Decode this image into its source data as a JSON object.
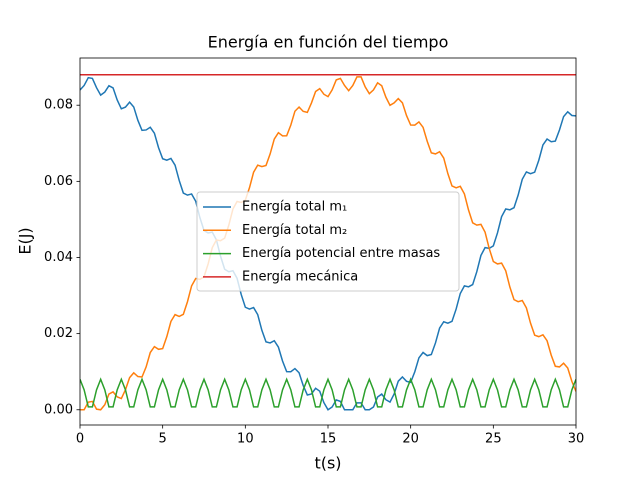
{
  "chart_data": {
    "type": "line",
    "title": "Energía en función del tiempo",
    "xlabel": "t(s)",
    "ylabel": "E(J)",
    "x": [
      0,
      0.25,
      0.5,
      0.75,
      1,
      1.25,
      1.5,
      1.75,
      2,
      2.25,
      2.5,
      2.75,
      3,
      3.25,
      3.5,
      3.75,
      4,
      4.25,
      4.5,
      4.75,
      5,
      5.25,
      5.5,
      5.75,
      6,
      6.25,
      6.5,
      6.75,
      7,
      7.25,
      7.5,
      7.75,
      8,
      8.25,
      8.5,
      8.75,
      9,
      9.25,
      9.5,
      9.75,
      10,
      10.25,
      10.5,
      10.75,
      11,
      11.25,
      11.5,
      11.75,
      12,
      12.25,
      12.5,
      12.75,
      13,
      13.25,
      13.5,
      13.75,
      14,
      14.25,
      14.5,
      14.75,
      15,
      15.25,
      15.5,
      15.75,
      16,
      16.25,
      16.5,
      16.75,
      17,
      17.25,
      17.5,
      17.75,
      18,
      18.25,
      18.5,
      18.75,
      19,
      19.25,
      19.5,
      19.75,
      20,
      20.25,
      20.5,
      20.75,
      21,
      21.25,
      21.5,
      21.75,
      22,
      22.25,
      22.5,
      22.75,
      23,
      23.25,
      23.5,
      23.75,
      24,
      24.25,
      24.5,
      24.75,
      25,
      25.25,
      25.5,
      25.75,
      26,
      26.25,
      26.5,
      26.75,
      27,
      27.25,
      27.5,
      27.75,
      28,
      28.25,
      28.5,
      28.75,
      29,
      29.25,
      29.5,
      29.75,
      30
    ],
    "series": [
      {
        "name": "Energía total m₁",
        "color": "#1f77b4",
        "values": [
          0.084,
          0.08519,
          0.08723,
          0.08704,
          0.0846,
          0.08265,
          0.08345,
          0.08512,
          0.08454,
          0.08137,
          0.07905,
          0.0795,
          0.0808,
          0.07954,
          0.07603,
          0.07339,
          0.0735,
          0.0742,
          0.07265,
          0.06887,
          0.06594,
          0.06555,
          0.06602,
          0.06425,
          0.06024,
          0.05693,
          0.05638,
          0.05669,
          0.05476,
          0.0505,
          0.0471,
          0.04645,
          0.04667,
          0.04463,
          0.04035,
          0.03692,
          0.03626,
          0.03651,
          0.03453,
          0.0303,
          0.02693,
          0.02645,
          0.02684,
          0.02498,
          0.02088,
          0.01784,
          0.01755,
          0.01813,
          0.01646,
          0.01281,
          0.01002,
          0.00999,
          0.01082,
          0.00972,
          0.00637,
          0.00389,
          0.00416,
          0.00564,
          0.00488,
          0.00188,
          0,
          0.00073,
          0.00259,
          0.0022,
          0,
          0,
          0,
          0.00181,
          0.00181,
          0,
          0,
          0.00073,
          0.00336,
          0.00412,
          0.00264,
          0.00202,
          0.00416,
          0.00751,
          0.00861,
          0.00748,
          0.0072,
          0.00999,
          0.01364,
          0.01505,
          0.01422,
          0.01451,
          0.01755,
          0.02146,
          0.02312,
          0.02274,
          0.02322,
          0.02645,
          0.03055,
          0.03254,
          0.03229,
          0.03289,
          0.03626,
          0.04054,
          0.04259,
          0.04239,
          0.04305,
          0.04645,
          0.05072,
          0.05274,
          0.05252,
          0.05307,
          0.05638,
          0.06055,
          0.06248,
          0.06201,
          0.0624,
          0.06555,
          0.06956,
          0.07111,
          0.07041,
          0.07058,
          0.0735,
          0.07701,
          0.07827,
          0.0773,
          0.07718
        ]
      },
      {
        "name": "Energía total m₂",
        "color": "#ff7f0e",
        "values": [
          0,
          0,
          0.00201,
          0.0022,
          0.00016,
          0,
          0.00131,
          0.00412,
          0.0047,
          0.00339,
          0.00295,
          0.00526,
          0.00844,
          0.0097,
          0.00873,
          0.00861,
          0.01126,
          0.01504,
          0.01659,
          0.01589,
          0.01606,
          0.01921,
          0.02322,
          0.02499,
          0.02452,
          0.02507,
          0.02838,
          0.03255,
          0.03448,
          0.03426,
          0.0349,
          0.03831,
          0.04257,
          0.04461,
          0.04441,
          0.04508,
          0.0485,
          0.05273,
          0.05471,
          0.05446,
          0.05507,
          0.05831,
          0.0624,
          0.06426,
          0.06388,
          0.06416,
          0.06721,
          0.07111,
          0.07278,
          0.07195,
          0.07198,
          0.07477,
          0.07842,
          0.07952,
          0.07839,
          0.07811,
          0.0806,
          0.0836,
          0.08436,
          0.08288,
          0.08226,
          0.08403,
          0.08665,
          0.08704,
          0.08519,
          0.08381,
          0.08519,
          0.08743,
          0.08743,
          0.0848,
          0.08303,
          0.08403,
          0.08588,
          0.08512,
          0.08212,
          0.07998,
          0.0806,
          0.08173,
          0.08063,
          0.07728,
          0.0748,
          0.07477,
          0.0756,
          0.07419,
          0.07054,
          0.06749,
          0.06721,
          0.06778,
          0.06612,
          0.06202,
          0.05878,
          0.05831,
          0.05869,
          0.0567,
          0.05247,
          0.04911,
          0.0485,
          0.0487,
          0.04665,
          0.04237,
          0.03895,
          0.03831,
          0.03852,
          0.0365,
          0.03224,
          0.02893,
          0.02838,
          0.02869,
          0.02676,
          0.02275,
          0.0196,
          0.01921,
          0.01968,
          0.01813,
          0.01435,
          0.01142,
          0.01126,
          0.01223,
          0.01097,
          0.00746,
          0.00482
        ]
      },
      {
        "name": "Energía potencial entre masas",
        "color": "#2ca02c",
        "values": [
          0.008,
          0.00524,
          0.00076,
          0.00076,
          0.00524,
          0.008,
          0.00524,
          0.00076,
          0.00076,
          0.00524,
          0.008,
          0.00524,
          0.00076,
          0.00076,
          0.00524,
          0.008,
          0.00524,
          0.00076,
          0.00076,
          0.00524,
          0.008,
          0.00524,
          0.00076,
          0.00076,
          0.00524,
          0.008,
          0.00524,
          0.00076,
          0.00076,
          0.00524,
          0.008,
          0.00524,
          0.00076,
          0.00076,
          0.00524,
          0.008,
          0.00524,
          0.00076,
          0.00076,
          0.00524,
          0.008,
          0.00524,
          0.00076,
          0.00076,
          0.00524,
          0.008,
          0.00524,
          0.00076,
          0.00076,
          0.00524,
          0.008,
          0.00524,
          0.00076,
          0.00076,
          0.00524,
          0.008,
          0.00524,
          0.00076,
          0.00076,
          0.00524,
          0.008,
          0.00524,
          0.00076,
          0.00076,
          0.00524,
          0.008,
          0.00524,
          0.00076,
          0.00076,
          0.00524,
          0.008,
          0.00524,
          0.00076,
          0.00076,
          0.00524,
          0.008,
          0.00524,
          0.00076,
          0.00076,
          0.00524,
          0.008,
          0.00524,
          0.00076,
          0.00076,
          0.00524,
          0.008,
          0.00524,
          0.00076,
          0.00076,
          0.00524,
          0.008,
          0.00524,
          0.00076,
          0.00076,
          0.00524,
          0.008,
          0.00524,
          0.00076,
          0.00076,
          0.00524,
          0.008,
          0.00524,
          0.00076,
          0.00076,
          0.00524,
          0.008,
          0.00524,
          0.00076,
          0.00076,
          0.00524,
          0.008,
          0.00524,
          0.00076,
          0.00076,
          0.00524,
          0.008,
          0.00524,
          0.00076,
          0.00076,
          0.00524,
          0.008
        ]
      },
      {
        "name": "Energía mecánica",
        "color": "#d62728",
        "x": [
          0,
          30
        ],
        "values": [
          0.088,
          0.088
        ]
      }
    ],
    "xlim": [
      0,
      30
    ],
    "xticks": [
      0,
      5,
      10,
      15,
      20,
      25,
      30
    ],
    "ylim": [
      -0.004,
      0.0924
    ],
    "yticks": [
      {
        "value": 0,
        "label": "0.00"
      },
      {
        "value": 0.02,
        "label": "0.02"
      },
      {
        "value": 0.04,
        "label": "0.04"
      },
      {
        "value": 0.06,
        "label": "0.06"
      },
      {
        "value": 0.08,
        "label": "0.08"
      }
    ],
    "legend": "center"
  }
}
